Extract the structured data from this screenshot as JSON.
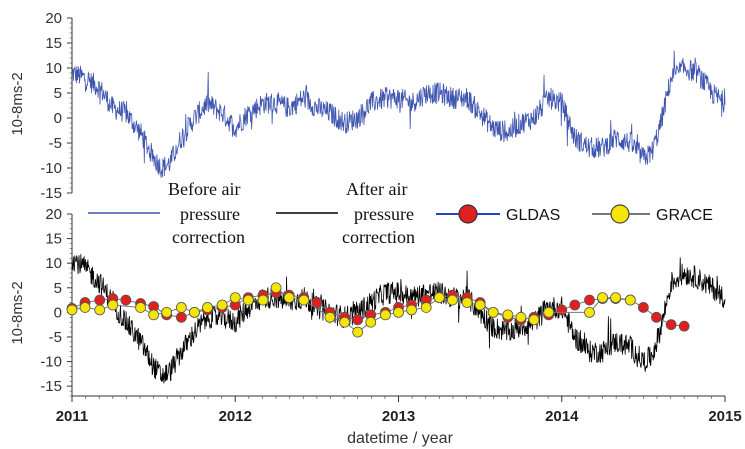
{
  "chart_data": [
    {
      "type": "line",
      "ylabel": "10-8ms-2",
      "ylim": [
        -15,
        20
      ],
      "yticks": [
        "20",
        "15",
        "10",
        "5",
        "0",
        "-5",
        "-10",
        "-15"
      ],
      "xlim": [
        2011,
        2015
      ],
      "colors": {
        "before": "#3f55b0"
      },
      "series": [
        {
          "name": "Before air pressure correction",
          "x": [
            2011.0,
            2011.08,
            2011.17,
            2011.25,
            2011.33,
            2011.42,
            2011.5,
            2011.55,
            2011.6,
            2011.67,
            2011.75,
            2011.83,
            2011.92,
            2012.0,
            2012.08,
            2012.17,
            2012.25,
            2012.33,
            2012.42,
            2012.5,
            2012.58,
            2012.67,
            2012.75,
            2012.83,
            2012.92,
            2013.0,
            2013.08,
            2013.17,
            2013.25,
            2013.33,
            2013.42,
            2013.5,
            2013.58,
            2013.67,
            2013.75,
            2013.83,
            2013.92,
            2014.0,
            2014.08,
            2014.17,
            2014.25,
            2014.33,
            2014.42,
            2014.5,
            2014.55,
            2014.6,
            2014.67,
            2014.75,
            2014.83,
            2014.92,
            2015.0
          ],
          "values": [
            9,
            8,
            6,
            2,
            1,
            -3,
            -8,
            -10,
            -9,
            -4,
            0,
            3,
            1,
            -2,
            1,
            3,
            3,
            2,
            4,
            2,
            1,
            -1,
            0,
            3,
            4,
            4,
            3,
            5,
            5,
            4,
            4,
            1,
            -2,
            -3,
            -1,
            0,
            4,
            3,
            -4,
            -6,
            -6,
            -4,
            -5,
            -8,
            -7,
            -2,
            8,
            10,
            9,
            5,
            3
          ]
        }
      ]
    },
    {
      "type": "line",
      "ylabel": "10-8ms-2",
      "xlabel": "datetime / year",
      "ylim": [
        -17,
        20
      ],
      "yticks": [
        "20",
        "15",
        "10",
        "5",
        "0",
        "-5",
        "-10",
        "-15"
      ],
      "xticks": [
        "2011",
        "2012",
        "2013",
        "2014",
        "2015"
      ],
      "xlim": [
        2011,
        2015
      ],
      "colors": {
        "before": "#3f55b0",
        "after": "#000000",
        "gldas": "#e02020",
        "grace": "#f5e600",
        "marker_edge": "#555555",
        "connector": "#777777"
      },
      "series": [
        {
          "name": "After air pressure correction",
          "x": [
            2011.0,
            2011.08,
            2011.17,
            2011.25,
            2011.33,
            2011.42,
            2011.5,
            2011.55,
            2011.6,
            2011.67,
            2011.75,
            2011.83,
            2011.92,
            2012.0,
            2012.08,
            2012.17,
            2012.25,
            2012.33,
            2012.42,
            2012.5,
            2012.58,
            2012.67,
            2012.75,
            2012.83,
            2012.92,
            2013.0,
            2013.08,
            2013.17,
            2013.25,
            2013.33,
            2013.42,
            2013.5,
            2013.58,
            2013.67,
            2013.75,
            2013.83,
            2013.92,
            2014.0,
            2014.08,
            2014.17,
            2014.25,
            2014.33,
            2014.42,
            2014.5,
            2014.55,
            2014.6,
            2014.67,
            2014.75,
            2014.83,
            2014.92,
            2015.0
          ],
          "values": [
            11,
            9,
            6,
            2,
            -2,
            -6,
            -11,
            -13,
            -12,
            -8,
            -4,
            -1,
            -1,
            -2,
            1,
            3,
            3,
            2,
            3,
            1,
            0,
            -1,
            0,
            2,
            4,
            4,
            3,
            4,
            4,
            3,
            3,
            0,
            -3,
            -4,
            -3,
            -2,
            1,
            1,
            -5,
            -8,
            -8,
            -6,
            -7,
            -10,
            -9,
            -4,
            6,
            8,
            7,
            5,
            3
          ]
        },
        {
          "name": "GLDAS",
          "x": [
            2011.0,
            2011.08,
            2011.17,
            2011.25,
            2011.33,
            2011.42,
            2011.5,
            2011.58,
            2011.67,
            2011.75,
            2011.83,
            2011.92,
            2012.0,
            2012.08,
            2012.17,
            2012.25,
            2012.33,
            2012.42,
            2012.5,
            2012.58,
            2012.67,
            2012.75,
            2012.83,
            2012.92,
            2013.0,
            2013.08,
            2013.17,
            2013.25,
            2013.33,
            2013.42,
            2013.5,
            2013.58,
            2013.67,
            2013.75,
            2013.83,
            2013.92,
            2014.0,
            2014.08,
            2014.17,
            2014.25,
            2014.33,
            2014.42,
            2014.5,
            2014.58,
            2014.67,
            2014.75
          ],
          "values": [
            0.8,
            2,
            2.5,
            2.8,
            2.5,
            1.8,
            1.2,
            -0.5,
            -1,
            0,
            0.5,
            1,
            1.5,
            3,
            3.5,
            4,
            3.5,
            3,
            2,
            0,
            -1,
            -1.5,
            -0.5,
            0,
            1,
            1.5,
            2.5,
            3,
            3.5,
            3,
            2,
            0,
            -1,
            -1.5,
            -1,
            -0.5,
            0.5,
            1.5,
            2.5,
            2.8,
            2.8,
            2.5,
            1,
            -1,
            -2.5,
            -2.8
          ]
        },
        {
          "name": "GRACE",
          "x": [
            2011.0,
            2011.08,
            2011.17,
            2011.25,
            2011.42,
            2011.5,
            2011.58,
            2011.67,
            2011.75,
            2011.83,
            2011.92,
            2012.0,
            2012.08,
            2012.17,
            2012.25,
            2012.33,
            2012.42,
            2012.58,
            2012.67,
            2012.75,
            2012.83,
            2012.92,
            2013.0,
            2013.08,
            2013.17,
            2013.25,
            2013.33,
            2013.42,
            2013.5,
            2013.58,
            2013.67,
            2013.75,
            2013.83,
            2013.92,
            2014.17,
            2014.25,
            2014.33,
            2014.42
          ],
          "values": [
            0.5,
            1,
            0.5,
            1.5,
            1,
            -0.5,
            0,
            1,
            0,
            1,
            1.5,
            3,
            2.5,
            2.5,
            5,
            3,
            2.5,
            -1,
            -2,
            -4,
            -2,
            -0.5,
            0,
            0.5,
            1,
            3,
            2.5,
            2,
            1.5,
            0,
            -0.5,
            -1,
            -1.5,
            0,
            0,
            3,
            3,
            2.5
          ]
        }
      ],
      "legend": {
        "placement": "top",
        "entries": [
          {
            "label_lines": [
              "Before air",
              "pressure",
              "correction"
            ]
          },
          {
            "label_lines": [
              "After air",
              "pressure",
              "correction"
            ]
          },
          {
            "label_lines": [
              "GLDAS"
            ]
          },
          {
            "label_lines": [
              "GRACE"
            ]
          }
        ]
      }
    }
  ]
}
